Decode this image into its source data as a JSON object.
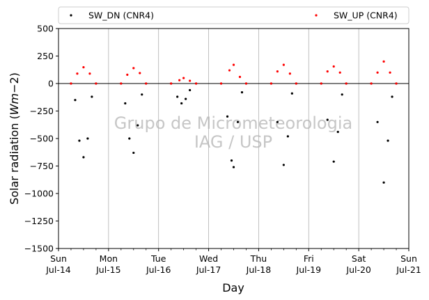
{
  "chart_data": {
    "type": "scatter",
    "xlabel": "Day",
    "ylabel": "Solar radiation (Wm−2)",
    "ylabel_base": "Solar radiation (",
    "ylabel_math": "Wm",
    "ylabel_exp": "−2",
    "ylabel_end": ")",
    "ylim": [
      -1500,
      500
    ],
    "yticks": [
      500,
      250,
      0,
      -250,
      -500,
      -750,
      -1000,
      -1250,
      -1500
    ],
    "xlim": [
      "2024-07-14",
      "2024-07-21"
    ],
    "xticks": [
      {
        "day": "Sun",
        "date": "Jul-14"
      },
      {
        "day": "Mon",
        "date": "Jul-15"
      },
      {
        "day": "Tue",
        "date": "Jul-16"
      },
      {
        "day": "Wed",
        "date": "Jul-17"
      },
      {
        "day": "Thu",
        "date": "Jul-18"
      },
      {
        "day": "Fri",
        "date": "Jul-19"
      },
      {
        "day": "Sat",
        "date": "Jul-20"
      },
      {
        "day": "Sun",
        "date": "Jul-21"
      }
    ],
    "grid": "vertical",
    "zero_line": true,
    "legend_position": "top",
    "watermark": [
      "Grupo de Micrometeorologia",
      "IAG / USP"
    ],
    "series": [
      {
        "name": "SW_DN (CNR4)",
        "color": "#000000",
        "daily_minimum": [
          -680,
          -635,
          -200,
          -760,
          -740,
          -720,
          -900
        ],
        "points": [
          [
            "Jul-14 06:00",
            0
          ],
          [
            "Jul-14 08:00",
            -150
          ],
          [
            "Jul-14 10:00",
            -520
          ],
          [
            "Jul-14 12:00",
            -670
          ],
          [
            "Jul-14 14:00",
            -500
          ],
          [
            "Jul-14 16:00",
            -120
          ],
          [
            "Jul-14 18:00",
            0
          ],
          [
            "Jul-15 06:00",
            0
          ],
          [
            "Jul-15 08:00",
            -180
          ],
          [
            "Jul-15 10:00",
            -500
          ],
          [
            "Jul-15 12:00",
            -630
          ],
          [
            "Jul-15 14:00",
            -380
          ],
          [
            "Jul-15 16:00",
            -100
          ],
          [
            "Jul-15 18:00",
            0
          ],
          [
            "Jul-16 06:00",
            0
          ],
          [
            "Jul-16 09:00",
            -120
          ],
          [
            "Jul-16 11:00",
            -180
          ],
          [
            "Jul-16 13:00",
            -140
          ],
          [
            "Jul-16 15:00",
            -60
          ],
          [
            "Jul-16 18:00",
            0
          ],
          [
            "Jul-17 06:00",
            0
          ],
          [
            "Jul-17 09:00",
            -300
          ],
          [
            "Jul-17 11:00",
            -700
          ],
          [
            "Jul-17 12:00",
            -760
          ],
          [
            "Jul-17 14:00",
            -350
          ],
          [
            "Jul-17 16:00",
            -80
          ],
          [
            "Jul-17 18:00",
            0
          ],
          [
            "Jul-18 06:00",
            0
          ],
          [
            "Jul-18 09:00",
            -350
          ],
          [
            "Jul-18 12:00",
            -740
          ],
          [
            "Jul-18 14:00",
            -480
          ],
          [
            "Jul-18 16:00",
            -90
          ],
          [
            "Jul-18 18:00",
            0
          ],
          [
            "Jul-19 06:00",
            0
          ],
          [
            "Jul-19 09:00",
            -330
          ],
          [
            "Jul-19 12:00",
            -710
          ],
          [
            "Jul-19 14:00",
            -440
          ],
          [
            "Jul-19 16:00",
            -100
          ],
          [
            "Jul-19 18:00",
            0
          ],
          [
            "Jul-20 06:00",
            0
          ],
          [
            "Jul-20 09:00",
            -350
          ],
          [
            "Jul-20 12:00",
            -900
          ],
          [
            "Jul-20 14:00",
            -520
          ],
          [
            "Jul-20 16:00",
            -120
          ],
          [
            "Jul-20 18:00",
            0
          ]
        ]
      },
      {
        "name": "SW_UP (CNR4)",
        "color": "#ff0000",
        "daily_maximum": [
          150,
          140,
          50,
          170,
          170,
          160,
          200
        ],
        "points": [
          [
            "Jul-14 06:00",
            0
          ],
          [
            "Jul-14 09:00",
            90
          ],
          [
            "Jul-14 12:00",
            148
          ],
          [
            "Jul-14 15:00",
            90
          ],
          [
            "Jul-14 18:00",
            0
          ],
          [
            "Jul-15 06:00",
            0
          ],
          [
            "Jul-15 09:00",
            80
          ],
          [
            "Jul-15 12:00",
            140
          ],
          [
            "Jul-15 15:00",
            95
          ],
          [
            "Jul-15 18:00",
            0
          ],
          [
            "Jul-16 06:00",
            0
          ],
          [
            "Jul-16 10:00",
            30
          ],
          [
            "Jul-16 12:00",
            50
          ],
          [
            "Jul-16 15:00",
            25
          ],
          [
            "Jul-16 18:00",
            0
          ],
          [
            "Jul-17 06:00",
            0
          ],
          [
            "Jul-17 10:00",
            120
          ],
          [
            "Jul-17 12:00",
            170
          ],
          [
            "Jul-17 15:00",
            60
          ],
          [
            "Jul-17 18:00",
            0
          ],
          [
            "Jul-18 06:00",
            0
          ],
          [
            "Jul-18 09:00",
            110
          ],
          [
            "Jul-18 12:00",
            170
          ],
          [
            "Jul-18 15:00",
            90
          ],
          [
            "Jul-18 18:00",
            0
          ],
          [
            "Jul-19 06:00",
            0
          ],
          [
            "Jul-19 09:00",
            110
          ],
          [
            "Jul-19 12:00",
            155
          ],
          [
            "Jul-19 15:00",
            100
          ],
          [
            "Jul-19 18:00",
            0
          ],
          [
            "Jul-20 06:00",
            0
          ],
          [
            "Jul-20 09:00",
            100
          ],
          [
            "Jul-20 12:00",
            200
          ],
          [
            "Jul-20 15:00",
            100
          ],
          [
            "Jul-20 18:00",
            0
          ]
        ]
      }
    ]
  }
}
